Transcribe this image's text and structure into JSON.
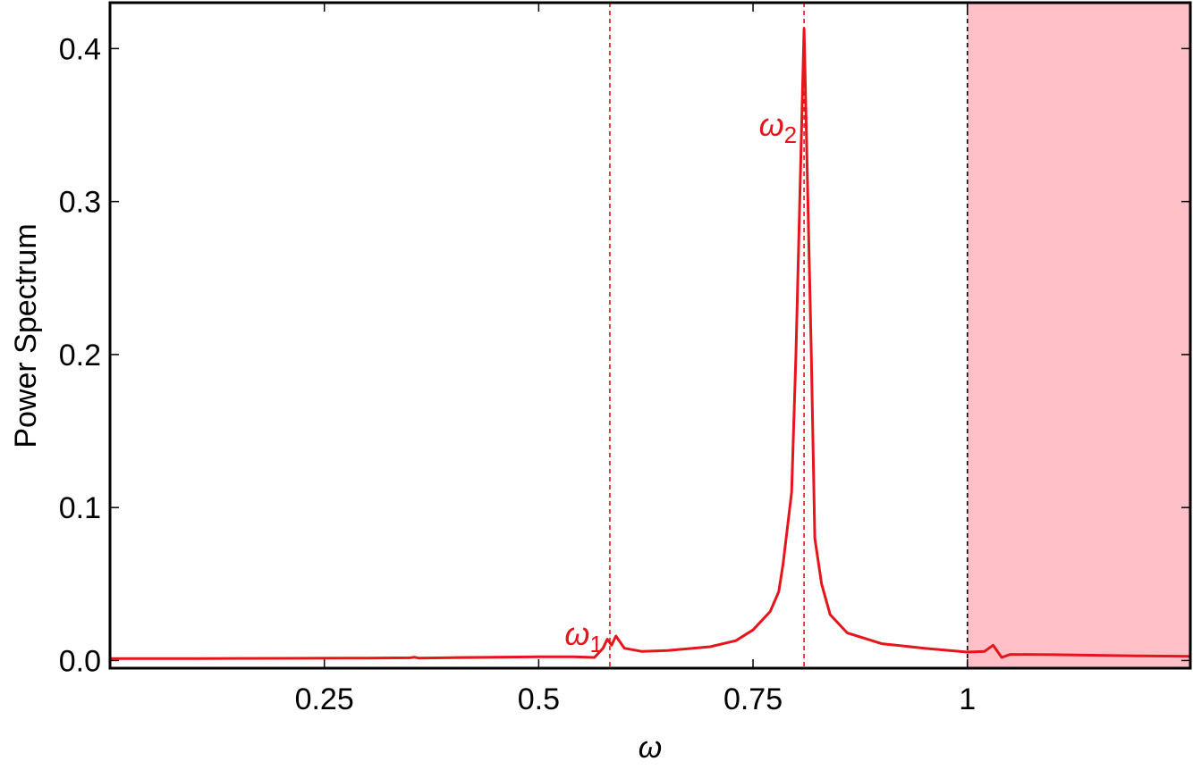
{
  "chart_data": {
    "type": "line",
    "x_label": "ω",
    "y_label": "Power Spectrum",
    "xlim": [
      0,
      1.26
    ],
    "ylim": [
      -0.005,
      0.43
    ],
    "xticks": [
      0.25,
      0.5,
      0.75,
      1
    ],
    "yticks": [
      {
        "value": 0,
        "label": "0.0"
      },
      0.1,
      0.2,
      0.3,
      0.4
    ],
    "shaded_from": 1,
    "shade_color": "#ffc0c8",
    "vlines": [
      {
        "value": 0.583,
        "color": "#e8141c",
        "label": "ω",
        "label_sub": "1"
      },
      {
        "value": 0.8095,
        "color": "#e8141c",
        "label": "ω",
        "label_sub": "2"
      },
      {
        "value": 1,
        "color": "#000000"
      }
    ],
    "x": [
      0,
      0.1,
      0.2,
      0.3,
      0.35,
      0.355,
      0.36,
      0.4,
      0.45,
      0.5,
      0.54,
      0.565,
      0.575,
      0.58,
      0.585,
      0.59,
      0.6,
      0.62,
      0.65,
      0.7,
      0.73,
      0.75,
      0.77,
      0.78,
      0.785,
      0.795,
      0.8,
      0.8095,
      0.818,
      0.822,
      0.83,
      0.84,
      0.86,
      0.9,
      0.95,
      1,
      1.02,
      1.03,
      1.04,
      1.05,
      1.1,
      1.2,
      1.26
    ],
    "series": [
      {
        "color": "#e8141c",
        "values": [
          0.0013,
          0.0013,
          0.0014,
          0.0016,
          0.0018,
          0.0022,
          0.0016,
          0.0019,
          0.0021,
          0.0024,
          0.0025,
          0.002,
          0.008,
          0.014,
          0.01,
          0.016,
          0.008,
          0.006,
          0.0065,
          0.009,
          0.013,
          0.02,
          0.032,
          0.045,
          0.063,
          0.11,
          0.2,
          0.413,
          0.2,
          0.08,
          0.05,
          0.03,
          0.018,
          0.011,
          0.008,
          0.0055,
          0.006,
          0.01,
          0.002,
          0.004,
          0.0038,
          0.003,
          0.0027
        ]
      }
    ]
  }
}
